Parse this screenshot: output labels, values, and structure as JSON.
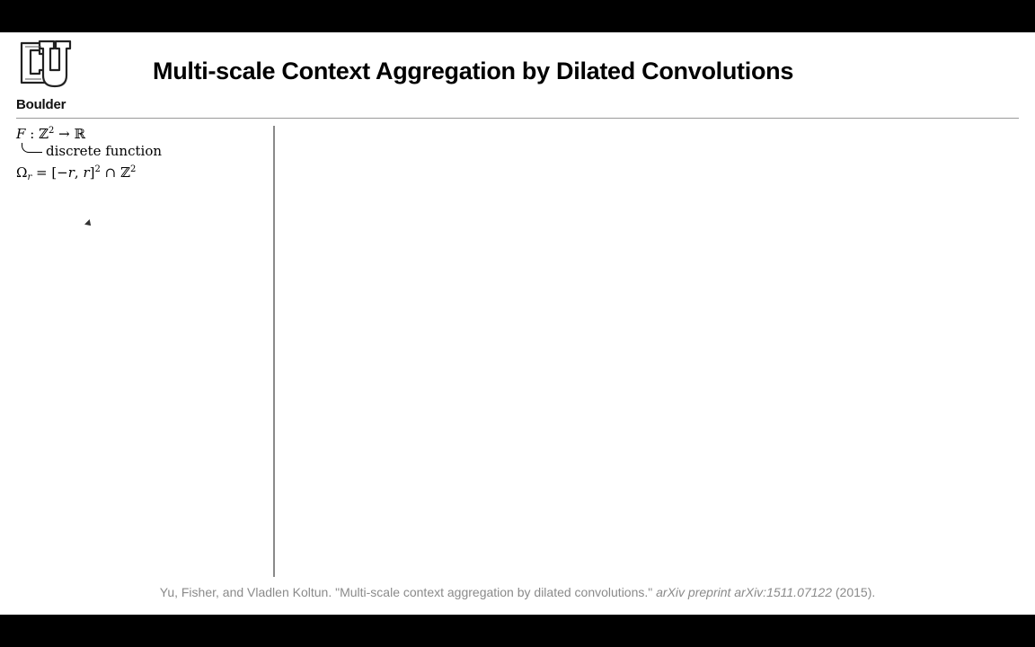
{
  "slide": {
    "logo": {
      "icon": "cu-logo-icon",
      "text": "Boulder"
    },
    "title": "Multi-scale Context Aggregation by Dilated Convolutions",
    "notes": {
      "line1": {
        "F": "F",
        "colon": " : ",
        "Z": "ℤ",
        "exp": "2",
        "arrow": " → ",
        "R": "ℝ"
      },
      "line2": {
        "text": "discrete function"
      },
      "line3": {
        "Omega": "Ω",
        "sub": "r",
        "rest": " = [−",
        "r1": "r",
        "comma": ", ",
        "r2": "r",
        "close": "]",
        "exp1": "2",
        "cap": " ∩ ",
        "Z": "ℤ",
        "exp2": "2"
      }
    },
    "citation": {
      "authors": "Yu, Fisher, and Vladlen Koltun. \"Multi-scale context aggregation by dilated convolutions.\" ",
      "journal": "arXiv preprint arXiv:1511.07122",
      "year": " (2015)."
    },
    "colors": {
      "background": "#ffffff",
      "letterbox": "#000000",
      "citation": "#8a8a8a",
      "rule": "#9a9a9a"
    }
  }
}
